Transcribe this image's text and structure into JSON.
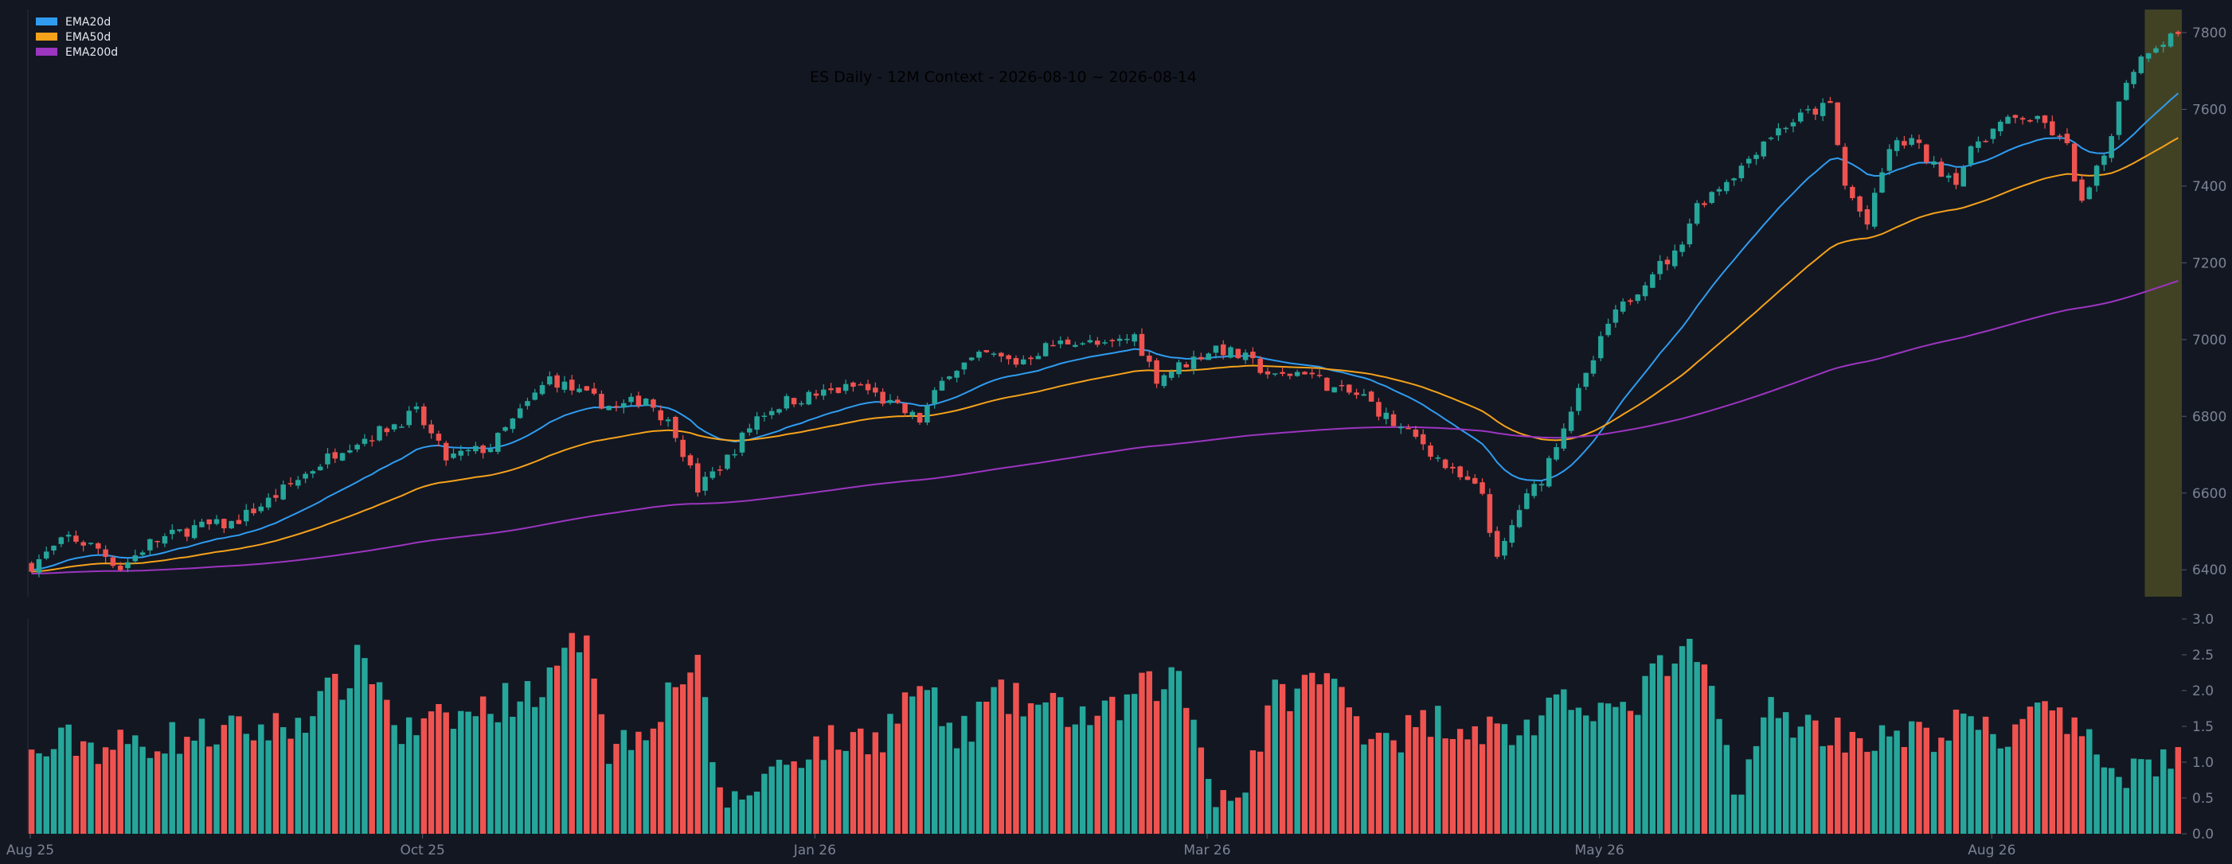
{
  "chart_data": {
    "type": "candlestick",
    "title": "ES Daily - 12M Context - 2026-08-10 ~ 2026-08-14",
    "price_axis": {
      "ylim": [
        6330,
        7860
      ],
      "ticks": [
        "6400",
        "6600",
        "6800",
        "7000",
        "7200",
        "7400",
        "7600",
        "7800"
      ]
    },
    "volume_axis": {
      "ylim": [
        0,
        3.0
      ],
      "ticks": [
        "0.0",
        "0.5",
        "1.0",
        "1.5",
        "2.0",
        "2.5",
        "3.0"
      ]
    },
    "x_ticks": [
      "Aug 25",
      "Oct 25",
      "Jan 26",
      "Mar 26",
      "May 26",
      "Aug 26"
    ],
    "legend": {
      "placement": "top-left",
      "entries": [
        {
          "name": "EMA20d",
          "color": "#2f9cf0"
        },
        {
          "name": "EMA50d",
          "color": "#f5a21b"
        },
        {
          "name": "EMA200d",
          "color": "#9c35c0"
        }
      ]
    },
    "colors": {
      "up": "#26a69a",
      "down": "#ef5350",
      "highlight": "#4a4a25",
      "grid": "#2a2e39"
    },
    "highlight_window": "2026-08-10 ~ 2026-08-14",
    "close_anchors": [
      [
        0,
        6412
      ],
      [
        5,
        6485
      ],
      [
        9,
        6455
      ],
      [
        12,
        6405
      ],
      [
        16,
        6470
      ],
      [
        22,
        6510
      ],
      [
        27,
        6520
      ],
      [
        32,
        6580
      ],
      [
        37,
        6650
      ],
      [
        42,
        6720
      ],
      [
        47,
        6760
      ],
      [
        52,
        6810
      ],
      [
        56,
        6690
      ],
      [
        62,
        6720
      ],
      [
        66,
        6810
      ],
      [
        70,
        6900
      ],
      [
        74,
        6860
      ],
      [
        79,
        6820
      ],
      [
        83,
        6850
      ],
      [
        87,
        6760
      ],
      [
        90,
        6610
      ],
      [
        94,
        6690
      ],
      [
        98,
        6800
      ],
      [
        102,
        6840
      ],
      [
        107,
        6860
      ],
      [
        112,
        6880
      ],
      [
        116,
        6830
      ],
      [
        120,
        6790
      ],
      [
        124,
        6920
      ],
      [
        129,
        6960
      ],
      [
        133,
        6940
      ],
      [
        137,
        6980
      ],
      [
        141,
        7000
      ],
      [
        145,
        6980
      ],
      [
        149,
        7010
      ],
      [
        152,
        6900
      ],
      [
        156,
        6940
      ],
      [
        160,
        6980
      ],
      [
        164,
        6950
      ],
      [
        168,
        6900
      ],
      [
        172,
        6920
      ],
      [
        176,
        6870
      ],
      [
        180,
        6850
      ],
      [
        184,
        6780
      ],
      [
        188,
        6730
      ],
      [
        192,
        6650
      ],
      [
        196,
        6600
      ],
      [
        198,
        6420
      ],
      [
        201,
        6560
      ],
      [
        204,
        6640
      ],
      [
        207,
        6780
      ],
      [
        210,
        6900
      ],
      [
        213,
        7040
      ],
      [
        216,
        7110
      ],
      [
        219,
        7180
      ],
      [
        222,
        7220
      ],
      [
        225,
        7350
      ],
      [
        228,
        7400
      ],
      [
        231,
        7450
      ],
      [
        234,
        7520
      ],
      [
        237,
        7560
      ],
      [
        240,
        7590
      ],
      [
        243,
        7610
      ],
      [
        245,
        7400
      ],
      [
        248,
        7300
      ],
      [
        251,
        7500
      ],
      [
        254,
        7520
      ],
      [
        257,
        7450
      ],
      [
        260,
        7420
      ],
      [
        263,
        7520
      ],
      [
        266,
        7560
      ],
      [
        269,
        7580
      ],
      [
        272,
        7560
      ],
      [
        275,
        7500
      ],
      [
        277,
        7350
      ],
      [
        280,
        7480
      ],
      [
        283,
        7680
      ],
      [
        286,
        7760
      ],
      [
        288,
        7780
      ],
      [
        290,
        7800
      ]
    ],
    "volume_anchors": [
      [
        0,
        1.05
      ],
      [
        5,
        1.3
      ],
      [
        10,
        1.2
      ],
      [
        20,
        1.35
      ],
      [
        35,
        1.5
      ],
      [
        42,
        2.1
      ],
      [
        45,
        2.5
      ],
      [
        50,
        1.4
      ],
      [
        60,
        1.7
      ],
      [
        70,
        2.1
      ],
      [
        75,
        2.9
      ],
      [
        78,
        1.2
      ],
      [
        82,
        1.4
      ],
      [
        90,
        2.5
      ],
      [
        92,
        0.8
      ],
      [
        95,
        0.4
      ],
      [
        100,
        0.9
      ],
      [
        105,
        1.2
      ],
      [
        115,
        1.4
      ],
      [
        120,
        2.1
      ],
      [
        125,
        1.3
      ],
      [
        130,
        1.9
      ],
      [
        140,
        1.7
      ],
      [
        145,
        1.6
      ],
      [
        150,
        2.0
      ],
      [
        155,
        2.2
      ],
      [
        160,
        0.6
      ],
      [
        163,
        0.5
      ],
      [
        168,
        1.9
      ],
      [
        175,
        2.2
      ],
      [
        180,
        1.5
      ],
      [
        185,
        1.4
      ],
      [
        190,
        1.6
      ],
      [
        200,
        1.4
      ],
      [
        210,
        1.9
      ],
      [
        215,
        1.6
      ],
      [
        220,
        2.3
      ],
      [
        225,
        2.5
      ],
      [
        228,
        1.6
      ],
      [
        230,
        0.6
      ],
      [
        235,
        1.7
      ],
      [
        240,
        1.5
      ],
      [
        245,
        1.4
      ],
      [
        250,
        1.3
      ],
      [
        258,
        1.4
      ],
      [
        262,
        1.6
      ],
      [
        266,
        1.2
      ],
      [
        270,
        1.9
      ],
      [
        273,
        1.6
      ],
      [
        278,
        1.2
      ],
      [
        283,
        0.9
      ],
      [
        290,
        1.1
      ]
    ]
  }
}
